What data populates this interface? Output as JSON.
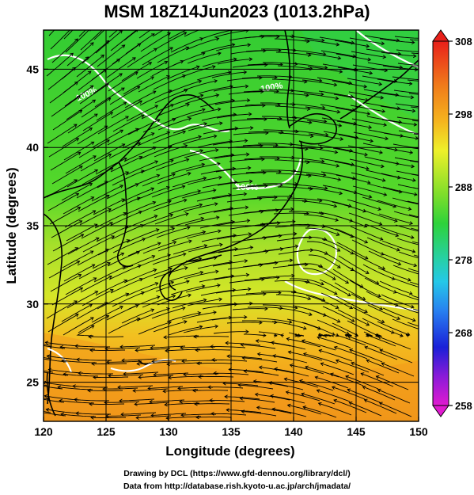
{
  "header": {
    "title": "MSM 18Z14Jun2023 (1013.2hPa)"
  },
  "map": {
    "x_axis_label": "Longitude (degrees)",
    "y_axis_label": "Latitude  (degrees)",
    "x_ticks": [
      "120",
      "125",
      "130",
      "135",
      "140",
      "145",
      "150"
    ],
    "x_tick_values": [
      120,
      125,
      130,
      135,
      140,
      145,
      150
    ],
    "y_ticks": [
      "25",
      "30",
      "35",
      "40",
      "45"
    ],
    "y_tick_values": [
      25,
      30,
      35,
      40,
      45
    ],
    "lon_range": [
      120,
      150
    ],
    "lat_range": [
      22.5,
      47.5
    ],
    "contour_labels": [
      "100%",
      "100%",
      "100%"
    ],
    "grid": true
  },
  "colorbar": {
    "tick_labels": [
      "308",
      "298",
      "288",
      "278",
      "268",
      "258"
    ],
    "tick_values": [
      308,
      298,
      288,
      278,
      268,
      258
    ],
    "range": [
      258,
      308
    ]
  },
  "footer": {
    "credit_drawing": "Drawing by DCL (https://www.gfd-dennou.org/library/dcl/)",
    "credit_data": "Data from http://database.rish.kyoto-u.ac.jp/arch/jmadata/"
  },
  "colors": {
    "land_green": "#2fd23c",
    "sea_yellow": "#c8e62a",
    "sea_orange": "#f0a020",
    "grid": "#000000",
    "contour": "#ffffff"
  }
}
